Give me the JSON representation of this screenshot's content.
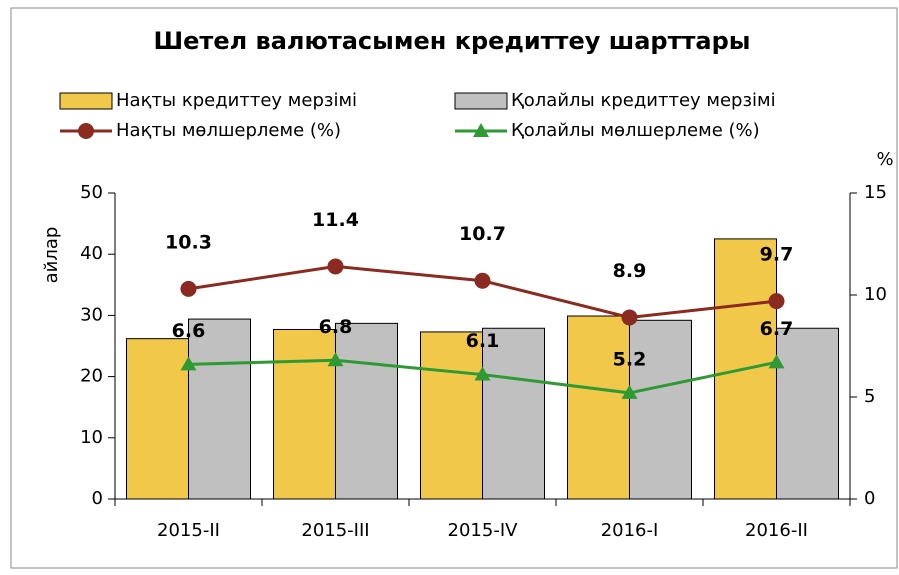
{
  "chart_data": {
    "type": "bar",
    "title": "Шетел валютасымен кредиттеу шарттары",
    "categories": [
      "2015-II",
      "2015-III",
      "2015-IV",
      "2016-I",
      "2016-II"
    ],
    "ylabel": "айлар",
    "y2label": "%",
    "ylim": [
      0,
      50
    ],
    "yticks": [
      0,
      10,
      20,
      30,
      40,
      50
    ],
    "y2lim": [
      0,
      15
    ],
    "y2ticks": [
      0,
      5,
      10,
      15
    ],
    "series": [
      {
        "name": "Нақты кредиттеу мерзімі",
        "type": "bar",
        "color": "#f2c84b",
        "values": [
          26.2,
          27.7,
          27.3,
          29.9,
          42.5
        ]
      },
      {
        "name": "Қолайлы кредиттеу мерзімі",
        "type": "bar",
        "color": "#c0c0c0",
        "values": [
          29.4,
          28.7,
          27.9,
          29.2,
          27.9
        ]
      },
      {
        "name": "Нақты мөлшерлеме (%)",
        "type": "line",
        "axis": "y2",
        "marker": "circle",
        "color": "#8b2a20",
        "values": [
          10.3,
          11.4,
          10.7,
          8.9,
          9.7
        ]
      },
      {
        "name": "Қолайлы мөлшерлеме (%)",
        "type": "line",
        "axis": "y2",
        "marker": "triangle",
        "color": "#2f9a33",
        "values": [
          6.6,
          6.8,
          6.1,
          5.2,
          6.7
        ]
      }
    ]
  }
}
